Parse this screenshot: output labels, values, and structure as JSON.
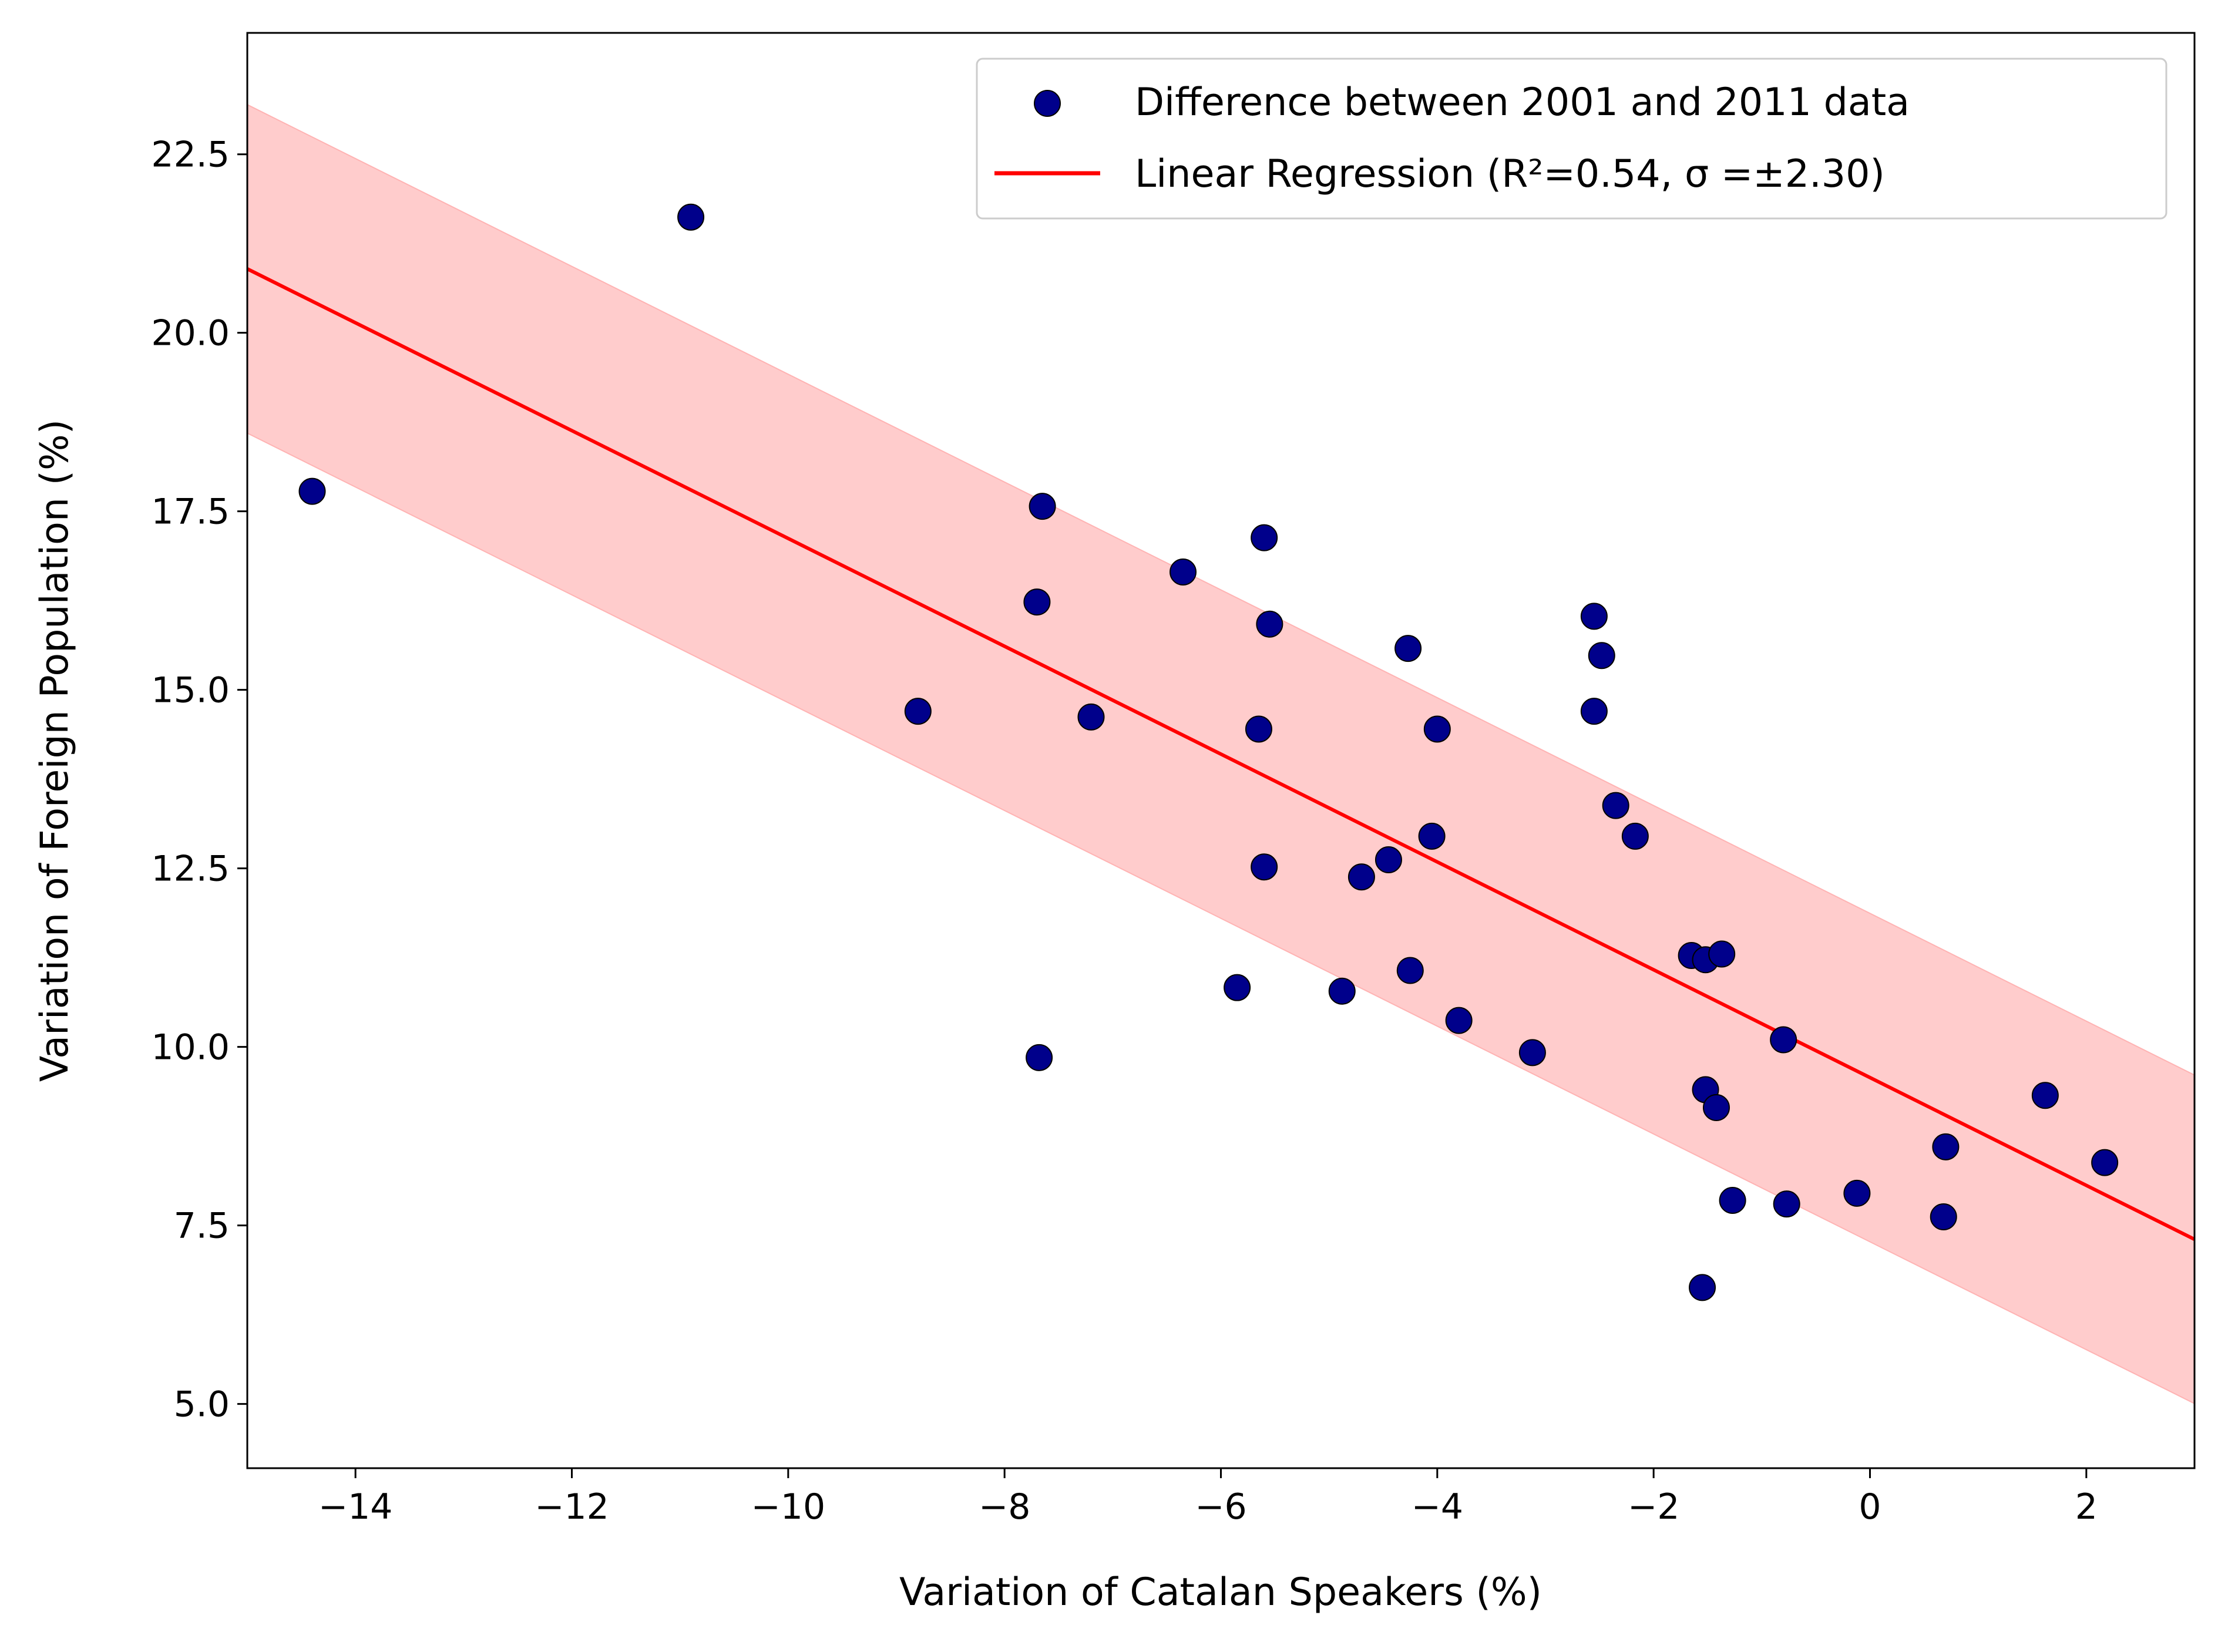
{
  "chart_data": {
    "type": "scatter",
    "xlabel": "Variation of Catalan Speakers (%)",
    "ylabel": "Variation of Foreign Population (%)",
    "xlim": [
      -15,
      3
    ],
    "ylim": [
      4.1,
      24.2
    ],
    "xticks": [
      {
        "value": -14,
        "label": "−14"
      },
      {
        "value": -12,
        "label": "−12"
      },
      {
        "value": -10,
        "label": "−10"
      },
      {
        "value": -8,
        "label": "−8"
      },
      {
        "value": -6,
        "label": "−6"
      },
      {
        "value": -4,
        "label": "−4"
      },
      {
        "value": -2,
        "label": "−2"
      },
      {
        "value": 0,
        "label": "0"
      },
      {
        "value": 2,
        "label": "2"
      }
    ],
    "yticks": [
      {
        "value": 5.0,
        "label": "5.0"
      },
      {
        "value": 7.5,
        "label": "7.5"
      },
      {
        "value": 10.0,
        "label": "10.0"
      },
      {
        "value": 12.5,
        "label": "12.5"
      },
      {
        "value": 15.0,
        "label": "15.0"
      },
      {
        "value": 17.5,
        "label": "17.5"
      },
      {
        "value": 20.0,
        "label": "20.0"
      },
      {
        "value": 22.5,
        "label": "22.5"
      }
    ],
    "grid": false,
    "legend_position": "top-right",
    "scatter": {
      "name": "Difference between 2001 and 2011 data",
      "color": "#00008b",
      "edge_color": "#000000",
      "points": [
        {
          "x": -14.4,
          "y": 17.78
        },
        {
          "x": -10.9,
          "y": 21.62
        },
        {
          "x": -8.8,
          "y": 14.7
        },
        {
          "x": -7.65,
          "y": 17.57
        },
        {
          "x": -7.7,
          "y": 16.23
        },
        {
          "x": -7.2,
          "y": 14.62
        },
        {
          "x": -7.68,
          "y": 9.85
        },
        {
          "x": -6.35,
          "y": 16.65
        },
        {
          "x": -5.6,
          "y": 17.13
        },
        {
          "x": -5.55,
          "y": 15.92
        },
        {
          "x": -5.65,
          "y": 14.45
        },
        {
          "x": -5.6,
          "y": 12.52
        },
        {
          "x": -5.85,
          "y": 10.83
        },
        {
          "x": -4.88,
          "y": 10.78
        },
        {
          "x": -4.7,
          "y": 12.38
        },
        {
          "x": -4.45,
          "y": 12.62
        },
        {
          "x": -4.27,
          "y": 15.58
        },
        {
          "x": -4.0,
          "y": 14.45
        },
        {
          "x": -4.05,
          "y": 12.95
        },
        {
          "x": -4.25,
          "y": 11.07
        },
        {
          "x": -3.8,
          "y": 10.37
        },
        {
          "x": -3.12,
          "y": 9.92
        },
        {
          "x": -2.55,
          "y": 16.03
        },
        {
          "x": -2.48,
          "y": 15.48
        },
        {
          "x": -2.55,
          "y": 14.7
        },
        {
          "x": -2.35,
          "y": 13.38
        },
        {
          "x": -2.17,
          "y": 12.95
        },
        {
          "x": -1.65,
          "y": 11.28
        },
        {
          "x": -1.52,
          "y": 11.22
        },
        {
          "x": -1.37,
          "y": 11.3
        },
        {
          "x": -1.52,
          "y": 9.4
        },
        {
          "x": -1.42,
          "y": 9.15
        },
        {
          "x": -1.27,
          "y": 7.85
        },
        {
          "x": -1.55,
          "y": 6.63
        },
        {
          "x": -0.8,
          "y": 10.1
        },
        {
          "x": -0.77,
          "y": 7.8
        },
        {
          "x": -0.12,
          "y": 7.95
        },
        {
          "x": 0.7,
          "y": 8.6
        },
        {
          "x": 0.68,
          "y": 7.62
        },
        {
          "x": 1.62,
          "y": 9.32
        },
        {
          "x": 2.17,
          "y": 8.38
        }
      ]
    },
    "regression": {
      "name": "Linear Regression (R²=0.54, σ =±2.30)",
      "slope": -0.755,
      "intercept": 9.57,
      "sigma": 2.3,
      "line_color": "#ff0000",
      "band_color": "#ffcccc",
      "band_edge_color": "#ffb3b3"
    }
  }
}
